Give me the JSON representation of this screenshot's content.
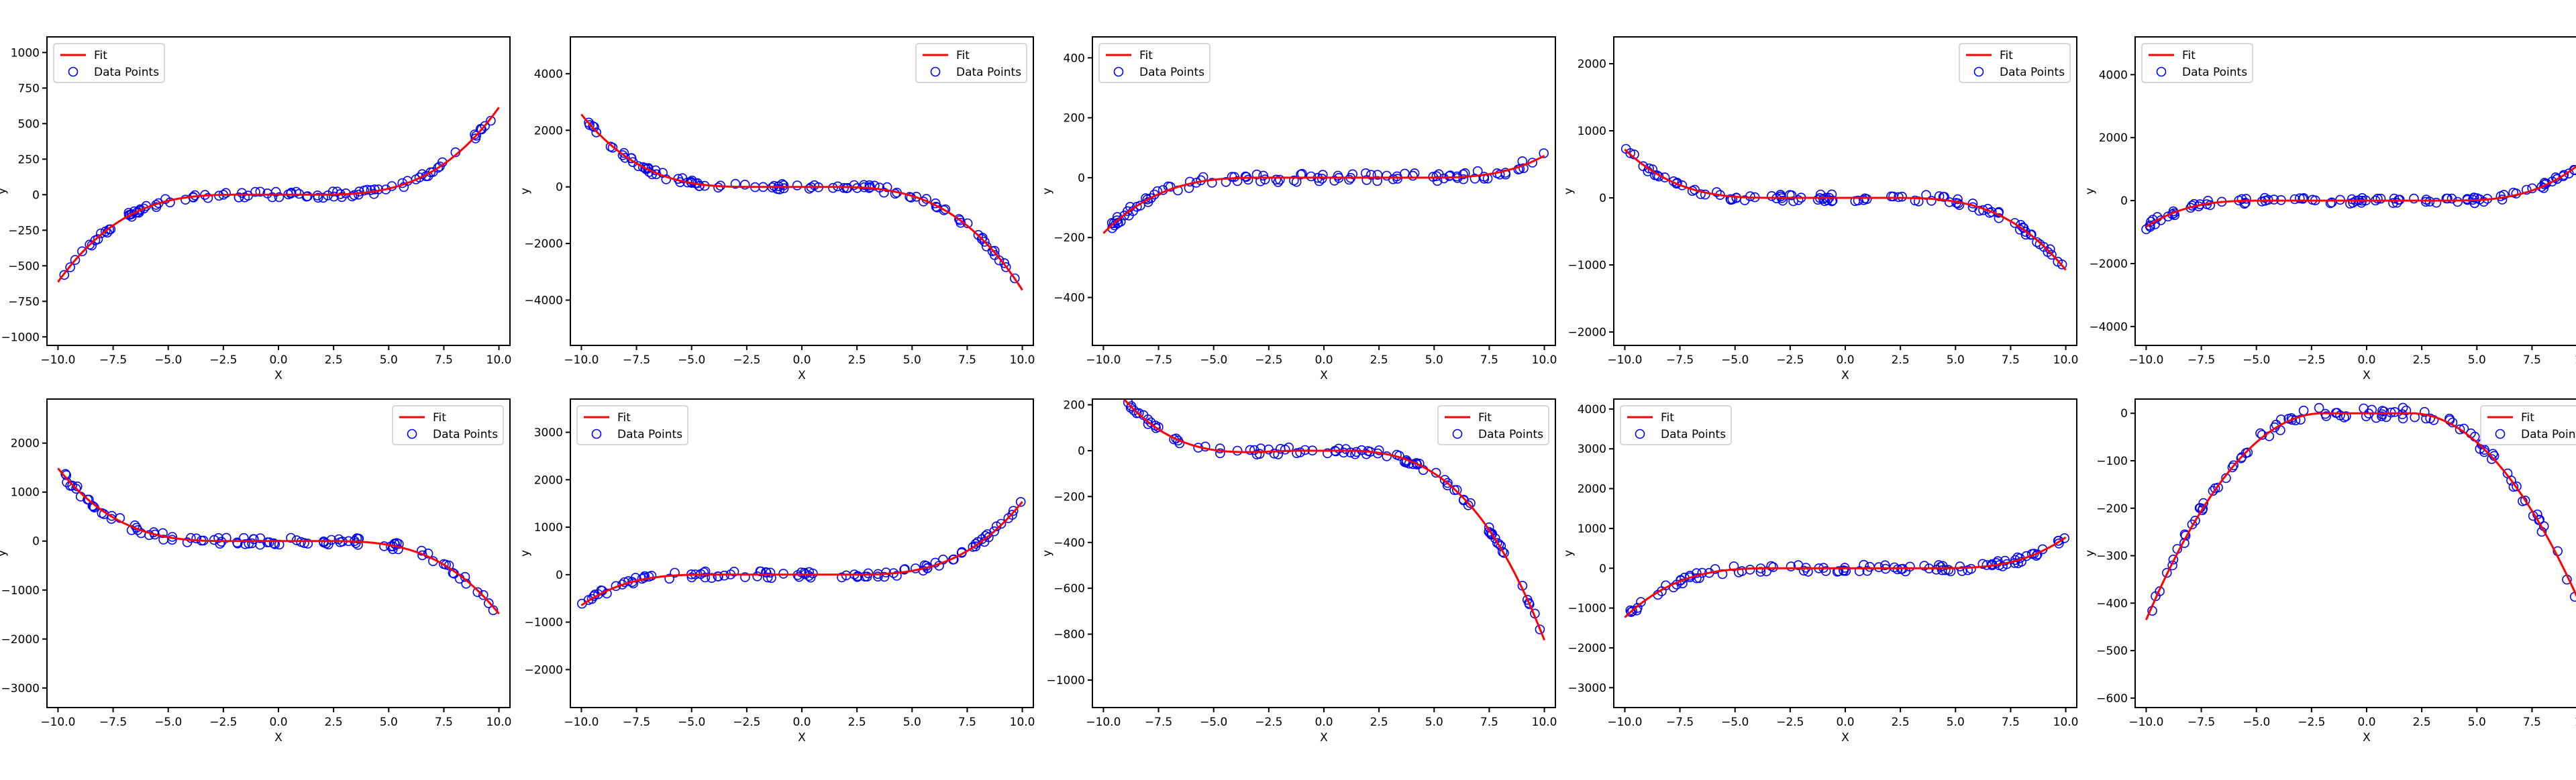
{
  "colors": {
    "fit": "#ff0000",
    "points": "#0000ff"
  },
  "legend": {
    "fit_label": "Fit",
    "points_label": "Data Points"
  },
  "chart_data": [
    {
      "type": "line",
      "title": "",
      "xlabel": "X",
      "ylabel": "y",
      "xlim": [
        -10.5,
        10.5
      ],
      "ylim": [
        -1060,
        1110
      ],
      "xticks": [
        -10,
        -7.5,
        -5,
        -2.5,
        0,
        2.5,
        5,
        7.5,
        10
      ],
      "xtick_labels": [
        "−10.0",
        "−7.5",
        "−5.0",
        "−2.5",
        "0.0",
        "2.5",
        "5.0",
        "7.5",
        "10.0"
      ],
      "yticks": [
        -1000,
        -750,
        -500,
        -250,
        0,
        250,
        500,
        750,
        1000
      ],
      "ytick_labels": [
        "−1000",
        "−750",
        "−500",
        "−250",
        "0",
        "250",
        "500",
        "750",
        "1000"
      ],
      "fit_coeffs": [
        0,
        0,
        0,
        1.0
      ],
      "fit_knots": [
        -1.5,
        1.5
      ],
      "noise": 22,
      "legend_loc": "upper-left",
      "series": [
        {
          "name": "Fit"
        },
        {
          "name": "Data Points"
        }
      ]
    },
    {
      "type": "line",
      "title": "",
      "xlabel": "X",
      "ylabel": "y",
      "xlim": [
        -10.5,
        10.5
      ],
      "ylim": [
        -5600,
        5300
      ],
      "xticks": [
        -10,
        -7.5,
        -5,
        -2.5,
        0,
        2.5,
        5,
        7.5,
        10
      ],
      "xtick_labels": [
        "−10.0",
        "−7.5",
        "−5.0",
        "−2.5",
        "0.0",
        "2.5",
        "5.0",
        "7.5",
        "10.0"
      ],
      "yticks": [
        -4000,
        -2000,
        0,
        2000,
        4000
      ],
      "ytick_labels": [
        "−4000",
        "−2000",
        "0",
        "2000",
        "4000"
      ],
      "fit_coeffs": [
        0,
        0,
        0,
        -5.0
      ],
      "fit_knots": [
        -2,
        1
      ],
      "noise": 110,
      "legend_loc": "upper-right",
      "series": [
        {
          "name": "Fit"
        },
        {
          "name": "Data Points"
        }
      ]
    },
    {
      "type": "line",
      "title": "",
      "xlabel": "X",
      "ylabel": "y",
      "xlim": [
        -10.5,
        10.5
      ],
      "ylim": [
        -560,
        470
      ],
      "xticks": [
        -10,
        -7.5,
        -5,
        -2.5,
        0,
        2.5,
        5,
        7.5,
        10
      ],
      "xtick_labels": [
        "−10.0",
        "−7.5",
        "−5.0",
        "−2.5",
        "0.0",
        "2.5",
        "5.0",
        "7.5",
        "10.0"
      ],
      "yticks": [
        -400,
        -200,
        0,
        200,
        400
      ],
      "ytick_labels": [
        "−400",
        "−200",
        "0",
        "200",
        "400"
      ],
      "fit_coeffs": [
        0,
        0,
        0,
        0.44
      ],
      "fit_knots": [
        -2.5,
        4.5
      ],
      "noise": 15,
      "legend_loc": "upper-left",
      "series": [
        {
          "name": "Fit"
        },
        {
          "name": "Data Points"
        }
      ]
    },
    {
      "type": "line",
      "title": "",
      "xlabel": "X",
      "ylabel": "y",
      "xlim": [
        -10.5,
        10.5
      ],
      "ylim": [
        -2200,
        2400
      ],
      "xticks": [
        -10,
        -7.5,
        -5,
        -2.5,
        0,
        2.5,
        5,
        7.5,
        10
      ],
      "xtick_labels": [
        "−10.0",
        "−7.5",
        "−5.0",
        "−2.5",
        "0.0",
        "2.5",
        "5.0",
        "7.5",
        "10.0"
      ],
      "yticks": [
        -2000,
        -1000,
        0,
        1000,
        2000
      ],
      "ytick_labels": [
        "−2000",
        "−1000",
        "0",
        "1000",
        "2000"
      ],
      "fit_coeffs": [
        0,
        0,
        0,
        -2.1
      ],
      "fit_knots": [
        -3,
        2
      ],
      "noise": 55,
      "legend_loc": "upper-right",
      "series": [
        {
          "name": "Fit"
        },
        {
          "name": "Data Points"
        }
      ]
    },
    {
      "type": "line",
      "title": "",
      "xlabel": "X",
      "ylabel": "y",
      "xlim": [
        -10.5,
        10.5
      ],
      "ylim": [
        -4600,
        5200
      ],
      "xticks": [
        -10,
        -7.5,
        -5,
        -2.5,
        0,
        2.5,
        5,
        7.5,
        10
      ],
      "xtick_labels": [
        "−10.0",
        "−7.5",
        "−5.0",
        "−2.5",
        "0.0",
        "2.5",
        "5.0",
        "7.5",
        "10.0"
      ],
      "yticks": [
        -4000,
        -2000,
        0,
        2000,
        4000
      ],
      "ytick_labels": [
        "−4000",
        "−2000",
        "0",
        "2000",
        "4000"
      ],
      "fit_coeffs": [
        0,
        0,
        0,
        5.0
      ],
      "fit_knots": [
        -4.5,
        3.5
      ],
      "noise": 100,
      "legend_loc": "upper-left",
      "series": [
        {
          "name": "Fit"
        },
        {
          "name": "Data Points"
        }
      ]
    },
    {
      "type": "line",
      "title": "",
      "xlabel": "X",
      "ylabel": "y",
      "xlim": [
        -10.5,
        10.5
      ],
      "ylim": [
        -3400,
        2900
      ],
      "xticks": [
        -10,
        -7.5,
        -5,
        -2.5,
        0,
        2.5,
        5,
        7.5,
        10
      ],
      "xtick_labels": [
        "−10.0",
        "−7.5",
        "−5.0",
        "−2.5",
        "0.0",
        "2.5",
        "5.0",
        "7.5",
        "10.0"
      ],
      "yticks": [
        -3000,
        -2000,
        -1000,
        0,
        1000,
        2000
      ],
      "ytick_labels": [
        "−3000",
        "−2000",
        "−1000",
        "0",
        "1000",
        "2000"
      ],
      "fit_coeffs": [
        0,
        0,
        0,
        -2.9
      ],
      "fit_knots": [
        -2,
        2
      ],
      "noise": 75,
      "legend_loc": "upper-right",
      "series": [
        {
          "name": "Fit"
        },
        {
          "name": "Data Points"
        }
      ]
    },
    {
      "type": "line",
      "title": "",
      "xlabel": "X",
      "ylabel": "y",
      "xlim": [
        -10.5,
        10.5
      ],
      "ylim": [
        -2800,
        3700
      ],
      "xticks": [
        -10,
        -7.5,
        -5,
        -2.5,
        0,
        2.5,
        5,
        7.5,
        10
      ],
      "xtick_labels": [
        "−10.0",
        "−7.5",
        "−5.0",
        "−2.5",
        "0.0",
        "2.5",
        "5.0",
        "7.5",
        "10.0"
      ],
      "yticks": [
        -2000,
        -1000,
        0,
        1000,
        2000,
        3000
      ],
      "ytick_labels": [
        "−2000",
        "−1000",
        "0",
        "1000",
        "2000",
        "3000"
      ],
      "fit_coeffs": [
        0,
        0,
        0,
        3.0
      ],
      "fit_knots": [
        -4,
        2
      ],
      "noise": 70,
      "legend_loc": "upper-left",
      "series": [
        {
          "name": "Fit"
        },
        {
          "name": "Data Points"
        }
      ]
    },
    {
      "type": "line",
      "title": "",
      "xlabel": "X",
      "ylabel": "y",
      "xlim": [
        -10.5,
        10.5
      ],
      "ylim": [
        -1120,
        225
      ],
      "xticks": [
        -10,
        -7.5,
        -5,
        -2.5,
        0,
        2.5,
        5,
        7.5,
        10
      ],
      "xtick_labels": [
        "−10.0",
        "−7.5",
        "−5.0",
        "−2.5",
        "0.0",
        "2.5",
        "5.0",
        "7.5",
        "10.0"
      ],
      "yticks": [
        -1000,
        -800,
        -600,
        -400,
        -200,
        0,
        200
      ],
      "ytick_labels": [
        "−1000",
        "−800",
        "−600",
        "−400",
        "−200",
        "0",
        "200"
      ],
      "fit_coeffs": [
        0,
        0,
        -3.0,
        -0.8
      ],
      "fit_knots": [
        -1,
        1
      ],
      "noise": 15,
      "legend_loc": "upper-right",
      "series": [
        {
          "name": "Fit"
        },
        {
          "name": "Data Points"
        }
      ]
    },
    {
      "type": "line",
      "title": "",
      "xlabel": "X",
      "ylabel": "y",
      "xlim": [
        -10.5,
        10.5
      ],
      "ylim": [
        -3500,
        4250
      ],
      "xticks": [
        -10,
        -7.5,
        -5,
        -2.5,
        0,
        2.5,
        5,
        7.5,
        10
      ],
      "xtick_labels": [
        "−10.0",
        "−7.5",
        "−5.0",
        "−2.5",
        "0.0",
        "2.5",
        "5.0",
        "7.5",
        "10.0"
      ],
      "yticks": [
        -3000,
        -2000,
        -1000,
        0,
        1000,
        2000,
        3000,
        4000
      ],
      "ytick_labels": [
        "−3000",
        "−2000",
        "−1000",
        "0",
        "1000",
        "2000",
        "3000",
        "4000"
      ],
      "fit_coeffs": [
        0,
        0,
        0,
        3.6
      ],
      "fit_knots": [
        -3,
        4
      ],
      "noise": 90,
      "legend_loc": "upper-left",
      "series": [
        {
          "name": "Fit"
        },
        {
          "name": "Data Points"
        }
      ]
    },
    {
      "type": "line",
      "title": "",
      "xlabel": "X",
      "ylabel": "y",
      "xlim": [
        -10.5,
        10.5
      ],
      "ylim": [
        -620,
        30
      ],
      "xticks": [
        -10,
        -7.5,
        -5,
        -2.5,
        0,
        2.5,
        5,
        7.5,
        10
      ],
      "xtick_labels": [
        "−10.0",
        "−7.5",
        "−5.0",
        "−2.5",
        "0.0",
        "2.5",
        "5.0",
        "7.5",
        "10.0"
      ],
      "yticks": [
        -600,
        -500,
        -400,
        -300,
        -200,
        -100,
        0
      ],
      "ytick_labels": [
        "−600",
        "−500",
        "−400",
        "−300",
        "−200",
        "−100",
        "0"
      ],
      "fit_coeffs": [
        0,
        0,
        -6.8,
        0
      ],
      "fit_knots": [
        -2,
        2
      ],
      "noise": 12,
      "legend_loc": "upper-right",
      "series": [
        {
          "name": "Fit"
        },
        {
          "name": "Data Points"
        }
      ]
    }
  ]
}
